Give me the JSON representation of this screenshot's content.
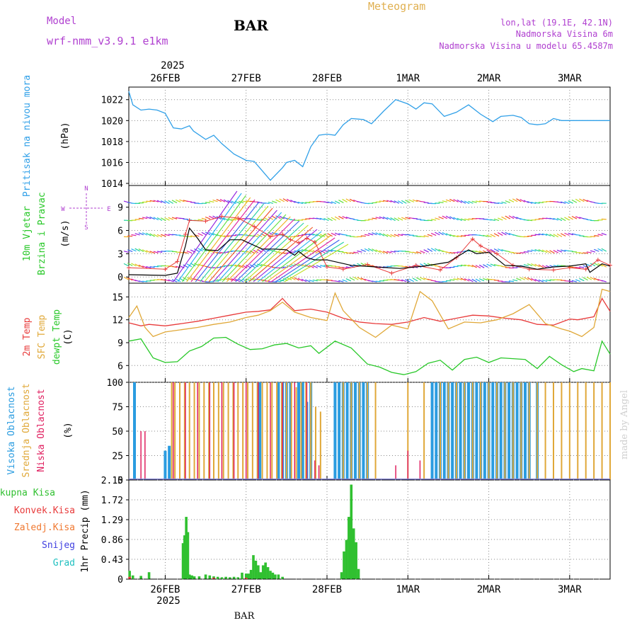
{
  "header": {
    "model_label": "Model",
    "model_name": "wrf-nmm_v3.9.1 e1km",
    "station": "BAR",
    "product": "Meteogram",
    "coords": "lon,lat (19.1E, 42.1N)",
    "elevation": "Nadmorska Visina 6m",
    "model_elevation": "Nadmorska Visina u modelu 65.4587m",
    "footer_station": "BAR",
    "watermark": "made by Angel"
  },
  "colors": {
    "header_purple": "#b040d0",
    "product_gold": "#e0b050",
    "pressure": "#30a0e8",
    "t2m": "#e83a3a",
    "tsfc": "#e0a838",
    "dewpoint": "#28c828",
    "cloud_high": "#2a9ce0",
    "cloud_mid": "#e0a838",
    "cloud_low": "#e02060",
    "precip_total": "#30c030",
    "precip_conv": "#e83a3a",
    "precip_frz": "#f07830",
    "precip_snow": "#4040e0",
    "precip_graupel": "#20c0c0",
    "wind_speed": "#000000",
    "gust": "#e83a3a"
  },
  "chart_data": [
    {
      "type": "line",
      "panel": "pressure",
      "ylabel_left": "Pritisak na nivou mora",
      "ylabel_units": "(hPa)",
      "yticks": [
        "1014",
        "1016",
        "1018",
        "1020",
        "1022"
      ],
      "ylim": [
        1013.8,
        1023.2
      ],
      "xlim": [
        -0.45,
        5.5
      ],
      "grid": true,
      "x": [
        -0.45,
        -0.4,
        -0.3,
        -0.2,
        -0.1,
        0,
        0.1,
        0.2,
        0.3,
        0.35,
        0.5,
        0.6,
        0.7,
        0.85,
        1.0,
        1.1,
        1.2,
        1.3,
        1.45,
        1.5,
        1.6,
        1.7,
        1.8,
        1.9,
        2.0,
        2.1,
        2.2,
        2.3,
        2.45,
        2.55,
        2.7,
        2.85,
        3.0,
        3.1,
        3.2,
        3.3,
        3.45,
        3.6,
        3.75,
        3.9,
        4.05,
        4.15,
        4.3,
        4.4,
        4.5,
        4.6,
        4.7,
        4.8,
        4.9,
        5.0,
        5.1,
        5.25,
        5.4,
        5.5
      ],
      "values": [
        1022.8,
        1021.5,
        1021.0,
        1021.1,
        1021.0,
        1020.7,
        1019.3,
        1019.2,
        1019.5,
        1019.0,
        1018.2,
        1018.6,
        1017.8,
        1016.8,
        1016.2,
        1016.1,
        1015.2,
        1014.3,
        1015.5,
        1016.0,
        1016.2,
        1015.6,
        1017.5,
        1018.6,
        1018.7,
        1018.6,
        1019.6,
        1020.2,
        1020.1,
        1019.7,
        1020.9,
        1022.0,
        1021.6,
        1021.1,
        1021.7,
        1021.6,
        1020.4,
        1020.8,
        1021.5,
        1020.6,
        1019.9,
        1020.4,
        1020.5,
        1020.3,
        1019.7,
        1019.6,
        1019.7,
        1020.2,
        1020.0,
        1020.0,
        1020.0,
        1020.0,
        1020.0,
        1020.0
      ]
    },
    {
      "type": "line",
      "panel": "wind",
      "ylabel_left_1": "10m Vjetar",
      "ylabel_left_2": "Brzina i Pravac",
      "ylabel_units": "(m/s)",
      "compass": [
        "N",
        "W",
        "E",
        "S"
      ],
      "yticks": [
        "0",
        "3",
        "6",
        "9"
      ],
      "ylim": [
        -0.8,
        11.8
      ],
      "grid": true,
      "series": [
        {
          "name": "wind_speed",
          "x": [
            -0.45,
            0,
            0.15,
            0.25,
            0.3,
            0.4,
            0.5,
            0.65,
            0.8,
            0.95,
            1.05,
            1.2,
            1.35,
            1.5,
            1.6,
            1.65,
            1.75,
            1.85,
            2.0,
            2.3,
            2.6,
            2.9,
            3.2,
            3.5,
            3.75,
            3.85,
            4.0,
            4.2,
            4.4,
            4.6,
            4.8,
            5.0,
            5.2,
            5.25,
            5.4,
            5.5
          ],
          "values": [
            0.3,
            0.2,
            0.5,
            4.0,
            6.3,
            5.0,
            3.5,
            3.4,
            4.8,
            4.8,
            4.3,
            3.6,
            3.6,
            3.5,
            2.8,
            3.3,
            2.5,
            2.2,
            2.2,
            1.5,
            1.3,
            1.1,
            1.4,
            1.9,
            3.5,
            3.0,
            3.2,
            1.5,
            1.4,
            1.0,
            1.3,
            1.4,
            1.7,
            0.6,
            1.7,
            1.4
          ]
        },
        {
          "name": "gust",
          "x": [
            -0.45,
            0,
            0.15,
            0.25,
            0.3,
            0.5,
            0.7,
            0.9,
            1.1,
            1.3,
            1.45,
            1.55,
            1.65,
            1.75,
            1.85,
            2.0,
            2.2,
            2.5,
            2.8,
            3.1,
            3.4,
            3.6,
            3.8,
            3.9,
            4.1,
            4.3,
            4.5,
            4.8,
            5.0,
            5.2,
            5.35,
            5.5
          ],
          "values": [
            1.2,
            1.0,
            2.0,
            5.5,
            7.3,
            7.2,
            7.8,
            7.6,
            6.5,
            5.2,
            5.5,
            4.8,
            4.4,
            5.0,
            4.5,
            1.3,
            1.0,
            1.6,
            0.5,
            1.5,
            0.9,
            2.5,
            4.9,
            4.0,
            3.0,
            1.5,
            1.0,
            0.9,
            1.2,
            1.0,
            2.2,
            1.5
          ]
        }
      ]
    },
    {
      "type": "line",
      "panel": "temperature",
      "ylabel_left_1": "2m Temp",
      "ylabel_left_2": "SFC Temp",
      "ylabel_left_3": "dewpt Temp",
      "ylabel_units": "(C)",
      "yticks": [
        "6",
        "9",
        "12",
        "15"
      ],
      "ylim": [
        3.8,
        16.8
      ],
      "grid": true,
      "series": [
        {
          "name": "2m Temp",
          "x": [
            -0.45,
            -0.3,
            -0.2,
            0,
            0.2,
            0.4,
            0.6,
            0.8,
            1.0,
            1.15,
            1.3,
            1.45,
            1.5,
            1.6,
            1.8,
            2.0,
            2.2,
            2.4,
            2.6,
            2.8,
            3.0,
            3.2,
            3.4,
            3.6,
            3.8,
            4.0,
            4.2,
            4.4,
            4.6,
            4.8,
            5.0,
            5.1,
            5.3,
            5.4,
            5.5
          ],
          "values": [
            11.6,
            11.2,
            11.4,
            11.2,
            11.5,
            11.8,
            12.2,
            12.6,
            13.0,
            13.1,
            13.3,
            14.8,
            14.2,
            13.2,
            13.4,
            13.0,
            12.2,
            11.7,
            11.5,
            11.4,
            11.7,
            12.3,
            11.8,
            12.2,
            12.6,
            12.5,
            12.2,
            12.0,
            11.4,
            11.3,
            12.1,
            12.0,
            12.4,
            14.8,
            13.1
          ]
        },
        {
          "name": "SFC Temp",
          "x": [
            -0.45,
            -0.35,
            -0.25,
            -0.15,
            0,
            0.2,
            0.4,
            0.6,
            0.8,
            1.0,
            1.15,
            1.3,
            1.45,
            1.6,
            1.8,
            2.0,
            2.1,
            2.2,
            2.4,
            2.6,
            2.8,
            3.0,
            3.15,
            3.3,
            3.5,
            3.7,
            3.9,
            4.1,
            4.3,
            4.5,
            4.7,
            4.9,
            5.0,
            5.15,
            5.3,
            5.4,
            5.5
          ],
          "values": [
            12.3,
            13.8,
            11.0,
            9.8,
            10.4,
            10.7,
            11.0,
            11.4,
            11.7,
            12.3,
            12.6,
            13.2,
            14.3,
            13.0,
            12.3,
            11.9,
            15.5,
            13.2,
            11.0,
            9.7,
            11.3,
            10.8,
            15.7,
            14.5,
            10.8,
            11.7,
            11.6,
            12.0,
            12.8,
            14.0,
            11.5,
            10.8,
            10.5,
            9.8,
            11.0,
            16.0,
            15.7
          ]
        },
        {
          "name": "dewpt Temp",
          "x": [
            -0.45,
            -0.3,
            -0.15,
            0,
            0.15,
            0.3,
            0.45,
            0.6,
            0.75,
            0.9,
            1.05,
            1.2,
            1.35,
            1.5,
            1.65,
            1.8,
            1.9,
            2.1,
            2.3,
            2.5,
            2.65,
            2.8,
            2.95,
            3.1,
            3.25,
            3.4,
            3.55,
            3.7,
            3.85,
            4.0,
            4.15,
            4.3,
            4.45,
            4.6,
            4.75,
            4.9,
            5.05,
            5.15,
            5.3,
            5.4,
            5.5
          ],
          "values": [
            9.2,
            9.5,
            7.0,
            6.4,
            6.5,
            7.9,
            8.5,
            9.6,
            9.7,
            8.8,
            8.1,
            8.2,
            8.7,
            8.9,
            8.3,
            8.6,
            7.6,
            9.2,
            8.3,
            6.2,
            5.8,
            5.1,
            4.8,
            5.2,
            6.3,
            6.7,
            5.4,
            6.8,
            7.1,
            6.4,
            7.0,
            6.9,
            6.8,
            5.6,
            7.2,
            6.1,
            5.2,
            5.6,
            5.3,
            9.2,
            7.5
          ]
        }
      ]
    },
    {
      "type": "bar",
      "panel": "clouds",
      "ylabel_left_1": "Visoka Oblacnost",
      "ylabel_left_2": "Srednja Oblacnost",
      "ylabel_left_3": "Niska Oblacnost",
      "ylabel_units": "(%)",
      "yticks": [
        "0",
        "25",
        "50",
        "75",
        "100"
      ],
      "ylim": [
        0,
        100
      ],
      "grid": true,
      "series": [
        {
          "name": "Visoka Oblacnost",
          "x": [
            -0.38,
            0.0,
            0.05,
            1.15,
            1.17,
            1.4,
            1.45,
            1.5,
            1.55,
            1.65,
            1.7,
            1.75,
            1.8,
            2.1,
            2.15,
            2.2,
            2.25,
            2.3,
            2.35,
            2.4,
            2.45,
            2.5,
            3.3,
            3.35,
            3.4,
            3.45,
            3.5,
            3.55,
            3.6,
            3.65,
            3.7,
            3.75,
            3.8,
            3.85,
            3.9,
            3.95,
            4.0,
            4.05,
            4.1,
            4.15,
            4.2,
            4.25,
            4.3,
            4.35,
            4.4,
            4.45,
            4.5,
            4.6
          ],
          "values": [
            100,
            30,
            35,
            100,
            100,
            100,
            100,
            100,
            100,
            100,
            100,
            80,
            100,
            100,
            100,
            100,
            100,
            100,
            100,
            100,
            100,
            100,
            100,
            100,
            100,
            100,
            100,
            100,
            100,
            100,
            100,
            100,
            100,
            100,
            100,
            100,
            100,
            100,
            100,
            100,
            100,
            100,
            100,
            100,
            100,
            100,
            100,
            100
          ]
        },
        {
          "name": "Srednja Oblacnost",
          "x": [
            0.08,
            0.12,
            0.18,
            0.24,
            0.3,
            0.36,
            0.42,
            0.48,
            0.54,
            0.6,
            0.66,
            0.72,
            0.78,
            0.84,
            0.9,
            0.96,
            1.02,
            1.08,
            1.14,
            1.2,
            1.26,
            1.32,
            1.38,
            1.44,
            1.5,
            1.56,
            1.62,
            1.68,
            1.74,
            1.8,
            1.86,
            1.92,
            2.2,
            2.3,
            2.4,
            2.5,
            2.6,
            3.0,
            3.2,
            3.4,
            3.5,
            3.6,
            3.7,
            3.8,
            3.9,
            4.0,
            4.1,
            4.2,
            4.3,
            4.4,
            4.5,
            4.6,
            4.7,
            4.8,
            4.9,
            5.0,
            5.1,
            5.2,
            5.3,
            5.4,
            5.5
          ],
          "values": [
            100,
            100,
            100,
            100,
            100,
            100,
            100,
            100,
            100,
            100,
            100,
            100,
            100,
            100,
            100,
            100,
            100,
            100,
            100,
            100,
            100,
            100,
            100,
            100,
            100,
            100,
            95,
            100,
            100,
            100,
            75,
            70,
            100,
            100,
            100,
            100,
            100,
            100,
            100,
            100,
            100,
            100,
            100,
            100,
            100,
            100,
            100,
            100,
            100,
            100,
            100,
            100,
            100,
            100,
            100,
            100,
            100,
            100,
            100,
            100,
            100
          ]
        },
        {
          "name": "Niska Oblacnost",
          "x": [
            -0.3,
            -0.25,
            0.1,
            0.25,
            0.4,
            0.55,
            0.7,
            0.85,
            1.0,
            1.15,
            1.3,
            1.45,
            1.6,
            1.75,
            1.85,
            1.9,
            2.85,
            3.0,
            3.15
          ],
          "values": [
            50,
            50,
            100,
            100,
            100,
            100,
            100,
            100,
            100,
            100,
            100,
            100,
            100,
            100,
            20,
            15,
            15,
            30,
            20
          ]
        }
      ]
    },
    {
      "type": "bar",
      "panel": "precip",
      "ylabel_units": "1hr Precip (mm)",
      "legend": [
        "Ukupna Kisa",
        "Konvek.Kisa",
        "Zaledj.Kisa",
        "Snijeg",
        "Grad"
      ],
      "yticks": [
        "0",
        "0.43",
        "0.86",
        "1.29",
        "1.72",
        "2.15"
      ],
      "ylim": [
        0,
        2.15
      ],
      "grid": true,
      "series": [
        {
          "name": "Ukupna Kisa",
          "x": [
            -0.44,
            -0.4,
            -0.3,
            -0.2,
            0.22,
            0.24,
            0.26,
            0.28,
            0.3,
            0.33,
            0.36,
            0.42,
            0.5,
            0.55,
            0.6,
            0.65,
            0.7,
            0.75,
            0.8,
            0.85,
            0.9,
            0.95,
            1.0,
            1.03,
            1.06,
            1.09,
            1.12,
            1.15,
            1.18,
            1.21,
            1.24,
            1.27,
            1.3,
            1.33,
            1.36,
            1.4,
            1.45,
            2.18,
            2.21,
            2.24,
            2.27,
            2.3,
            2.33,
            2.36,
            2.39
          ],
          "values": [
            0.18,
            0.08,
            0.07,
            0.15,
            0.78,
            0.95,
            1.35,
            1.02,
            0.1,
            0.08,
            0.06,
            0.06,
            0.1,
            0.08,
            0.06,
            0.05,
            0.04,
            0.05,
            0.04,
            0.05,
            0.04,
            0.14,
            0.12,
            0.12,
            0.2,
            0.52,
            0.4,
            0.3,
            0.15,
            0.3,
            0.36,
            0.26,
            0.18,
            0.14,
            0.1,
            0.1,
            0.05,
            0.15,
            0.6,
            0.85,
            1.35,
            2.05,
            1.1,
            0.8,
            0.22
          ]
        },
        {
          "name": "Konvek.Kisa",
          "x": [
            -0.44,
            0.6,
            1.0
          ],
          "values": [
            0.05,
            0.03,
            0.03
          ]
        }
      ]
    }
  ],
  "x_axis": {
    "year_top": "2025",
    "year_bottom": "2025",
    "dates": [
      "26FEB",
      "27FEB",
      "28FEB",
      "1MAR",
      "2MAR",
      "3MAR"
    ]
  }
}
